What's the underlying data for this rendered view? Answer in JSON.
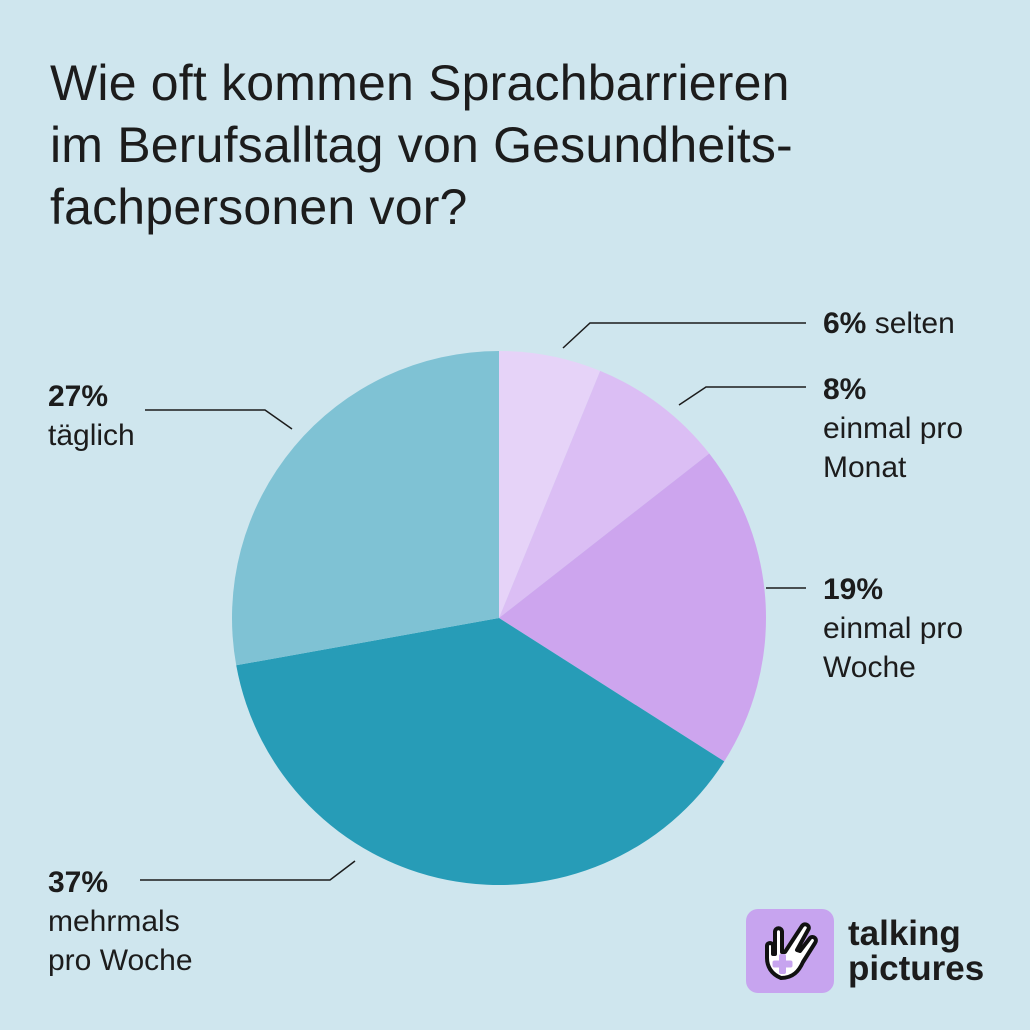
{
  "title_lines": [
    "Wie oft kommen Sprachbarrieren",
    "im Berufsalltag von Gesundheits-",
    "fachpersonen vor?"
  ],
  "colors": {
    "background": "#cfe6ee",
    "selten": "#e6d3f8",
    "einmal_pro_monat": "#dbbef4",
    "einmal_pro_woche": "#cda5ee",
    "mehrmals_pro_woche": "#279cb7",
    "taeglich": "#7fc2d4"
  },
  "chart_data": {
    "type": "pie",
    "title": "Wie oft kommen Sprachbarrieren im Berufsalltag von Gesundheitsfachpersonen vor?",
    "unit": "%",
    "start": "12 o'clock, clockwise",
    "slices": [
      {
        "key": "selten",
        "value": 6,
        "value_label": "6%",
        "label_lines": [
          "selten"
        ]
      },
      {
        "key": "einmal_pro_monat",
        "value": 8,
        "value_label": "8%",
        "label_lines": [
          "einmal pro",
          "Monat"
        ]
      },
      {
        "key": "einmal_pro_woche",
        "value": 19,
        "value_label": "19%",
        "label_lines": [
          "einmal pro",
          "Woche"
        ]
      },
      {
        "key": "mehrmals_pro_woche",
        "value": 37,
        "value_label": "37%",
        "label_lines": [
          "mehrmals",
          "pro Woche"
        ]
      },
      {
        "key": "taeglich",
        "value": 27,
        "value_label": "27%",
        "label_lines": [
          "täglich"
        ]
      }
    ]
  },
  "brand": {
    "icon": "hand-pointer-plus-icon",
    "lines": [
      "talking",
      "pictures"
    ]
  }
}
